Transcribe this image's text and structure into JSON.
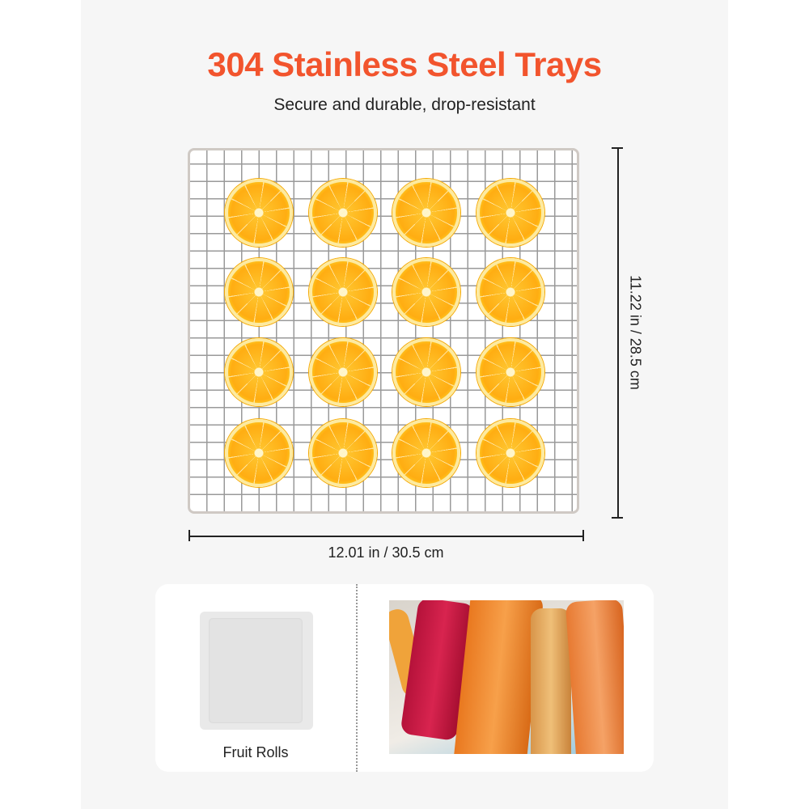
{
  "title": "304 Stainless Steel Trays",
  "subtitle": "Secure and durable, drop-resistant",
  "dimensions": {
    "height_label": "11.22 in / 28.5 cm",
    "width_label": "12.01 in / 30.5 cm"
  },
  "tray": {
    "item_icon": "orange-slice",
    "rows": 4,
    "cols": 4
  },
  "accessory": {
    "label": "Fruit Rolls",
    "icon": "fruit-roll-sheet"
  },
  "colors": {
    "accent": "#f2542d"
  }
}
